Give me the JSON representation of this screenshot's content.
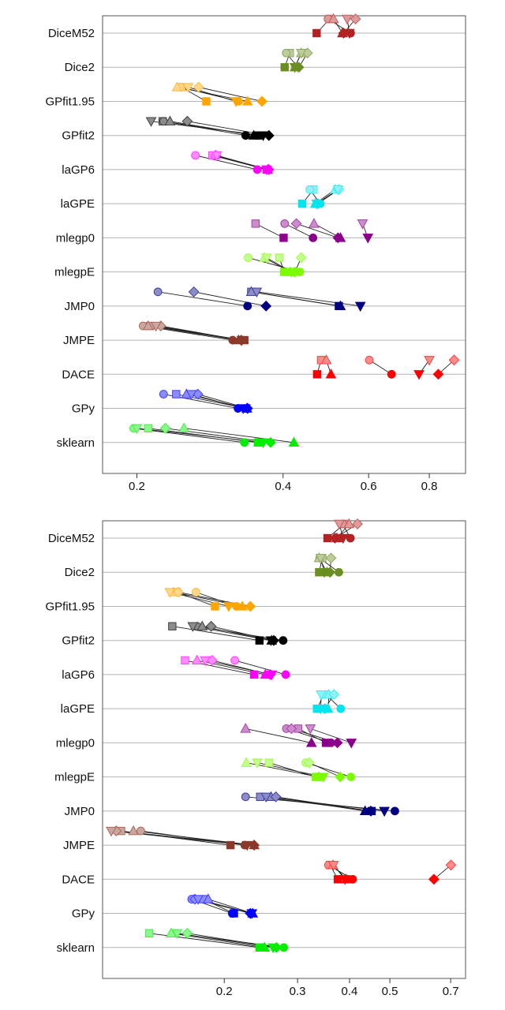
{
  "chart_data": [
    {
      "type": "scatter",
      "x_scale": "log",
      "xlim": [
        0.17,
        0.95
      ],
      "xticks": [
        0.2,
        0.4,
        0.6,
        0.8
      ],
      "xtick_labels": [
        "0.2",
        "0.4",
        "0.6",
        "0.8"
      ],
      "categories": [
        "DiceM52",
        "Dice2",
        "GPfit1.95",
        "GPfit2",
        "laGP6",
        "laGPE",
        "mlegp0",
        "mlegpE",
        "JMP0",
        "JMPE",
        "DACE",
        "GPy",
        "sklearn"
      ],
      "colors": [
        "#b22222",
        "#6b8e23",
        "#ffa500",
        "#000000",
        "#ff00ff",
        "#00e5ee",
        "#8b008b",
        "#7cfc00",
        "#000080",
        "#8b3a2a",
        "#ff0000",
        "#0000ff",
        "#00ee00"
      ],
      "markers": [
        "square",
        "circle",
        "triangle",
        "diamond",
        "down-triangle"
      ],
      "rows": [
        {
          "name": "DiceM52",
          "pairs": [
            [
              0.499,
              0.469
            ],
            [
              0.495,
              0.551
            ],
            [
              0.508,
              0.53
            ],
            [
              0.564,
              0.533
            ],
            [
              0.542,
              0.548
            ]
          ]
        },
        {
          "name": "Dice2",
          "pairs": [
            [
              0.413,
              0.403
            ],
            [
              0.406,
              0.429
            ],
            [
              0.436,
              0.423
            ],
            [
              0.449,
              0.431
            ],
            [
              0.436,
              0.423
            ]
          ]
        },
        {
          "name": "GPfit1.95",
          "pairs": [
            [
              0.247,
              0.278
            ],
            [
              0.246,
              0.324
            ],
            [
              0.242,
              0.338
            ],
            [
              0.268,
              0.362
            ],
            [
              0.255,
              0.32
            ]
          ]
        },
        {
          "name": "GPfit2",
          "pairs": [
            [
              0.226,
              0.355
            ],
            [
              0.227,
              0.335
            ],
            [
              0.234,
              0.348
            ],
            [
              0.254,
              0.374
            ],
            [
              0.214,
              0.364
            ]
          ]
        },
        {
          "name": "laGP6",
          "pairs": [
            [
              0.286,
              0.37
            ],
            [
              0.264,
              0.354
            ],
            [
              0.29,
              0.372
            ],
            [
              0.291,
              0.374
            ],
            [
              0.292,
              0.37
            ]
          ]
        },
        {
          "name": "laGPE",
          "pairs": [
            [
              0.462,
              0.438
            ],
            [
              0.454,
              0.477
            ],
            [
              0.512,
              0.466
            ],
            [
              0.521,
              0.472
            ],
            [
              0.519,
              0.469
            ]
          ]
        },
        {
          "name": "mlegp0",
          "pairs": [
            [
              0.351,
              0.401
            ],
            [
              0.403,
              0.461
            ],
            [
              0.463,
              0.525
            ],
            [
              0.426,
              0.519
            ],
            [
              0.583,
              0.598
            ]
          ]
        },
        {
          "name": "mlegpE",
          "pairs": [
            [
              0.393,
              0.402
            ],
            [
              0.339,
              0.433
            ],
            [
              0.366,
              0.414
            ],
            [
              0.436,
              0.423
            ],
            [
              0.37,
              0.416
            ]
          ]
        },
        {
          "name": "JMP0",
          "pairs": [
            [
              0.344,
              0.521
            ],
            [
              0.221,
              0.338
            ],
            [
              0.344,
              0.525
            ],
            [
              0.262,
              0.369
            ],
            [
              0.353,
              0.577
            ]
          ]
        },
        {
          "name": "JMPE",
          "pairs": [
            [
              0.213,
              0.333
            ],
            [
              0.206,
              0.315
            ],
            [
              0.211,
              0.324
            ],
            [
              0.224,
              0.328
            ],
            [
              0.219,
              0.329
            ]
          ]
        },
        {
          "name": "DACE",
          "pairs": [
            [
              0.479,
              0.47
            ],
            [
              0.602,
              0.669
            ],
            [
              0.491,
              0.502
            ],
            [
              0.9,
              0.835
            ],
            [
              0.8,
              0.762
            ]
          ]
        },
        {
          "name": "GPy",
          "pairs": [
            [
              0.241,
              0.336
            ],
            [
              0.227,
              0.323
            ],
            [
              0.253,
              0.337
            ],
            [
              0.267,
              0.338
            ],
            [
              0.259,
              0.331
            ]
          ]
        },
        {
          "name": "sklearn",
          "pairs": [
            [
              0.211,
              0.355
            ],
            [
              0.197,
              0.333
            ],
            [
              0.25,
              0.421
            ],
            [
              0.229,
              0.377
            ],
            [
              0.2,
              0.364
            ]
          ]
        }
      ]
    },
    {
      "type": "scatter",
      "x_scale": "log",
      "xlim": [
        0.102,
        0.76
      ],
      "xticks": [
        0.2,
        0.3,
        0.4,
        0.5,
        0.7
      ],
      "xtick_labels": [
        "0.2",
        "0.3",
        "0.4",
        "0.5",
        "0.7"
      ],
      "categories": [
        "DiceM52",
        "Dice2",
        "GPfit1.95",
        "GPfit2",
        "laGP6",
        "laGPE",
        "mlegp0",
        "mlegpE",
        "JMP0",
        "JMPE",
        "DACE",
        "GPy",
        "sklearn"
      ],
      "colors": [
        "#b22222",
        "#6b8e23",
        "#ffa500",
        "#000000",
        "#ff00ff",
        "#00e5ee",
        "#8b008b",
        "#7cfc00",
        "#000080",
        "#8b3a2a",
        "#ff0000",
        "#0000ff",
        "#00ee00"
      ],
      "markers": [
        "square",
        "circle",
        "triangle",
        "diamond",
        "down-triangle"
      ],
      "rows": [
        {
          "name": "DiceM52",
          "pairs": [
            [
              0.389,
              0.354
            ],
            [
              0.385,
              0.402
            ],
            [
              0.399,
              0.373
            ],
            [
              0.418,
              0.369
            ],
            [
              0.378,
              0.386
            ]
          ]
        },
        {
          "name": "Dice2",
          "pairs": [
            [
              0.344,
              0.338
            ],
            [
              0.339,
              0.377
            ],
            [
              0.338,
              0.353
            ],
            [
              0.361,
              0.359
            ],
            [
              0.341,
              0.348
            ]
          ]
        },
        {
          "name": "GPfit1.95",
          "pairs": [
            [
              0.154,
              0.19
            ],
            [
              0.171,
              0.214
            ],
            [
              0.151,
              0.221
            ],
            [
              0.155,
              0.231
            ],
            [
              0.148,
              0.205
            ]
          ]
        },
        {
          "name": "GPfit2",
          "pairs": [
            [
              0.15,
              0.243
            ],
            [
              0.172,
              0.277
            ],
            [
              0.177,
              0.26
            ],
            [
              0.186,
              0.263
            ],
            [
              0.168,
              0.259
            ]
          ]
        },
        {
          "name": "laGP6",
          "pairs": [
            [
              0.161,
              0.236
            ],
            [
              0.212,
              0.281
            ],
            [
              0.172,
              0.251
            ],
            [
              0.187,
              0.258
            ],
            [
              0.18,
              0.26
            ]
          ]
        },
        {
          "name": "laGPE",
          "pairs": [
            [
              0.347,
              0.334
            ],
            [
              0.351,
              0.381
            ],
            [
              0.357,
              0.355
            ],
            [
              0.367,
              0.349
            ],
            [
              0.342,
              0.341
            ]
          ]
        },
        {
          "name": "mlegp0",
          "pairs": [
            [
              0.301,
              0.351
            ],
            [
              0.282,
              0.361
            ],
            [
              0.225,
              0.324
            ],
            [
              0.29,
              0.374
            ],
            [
              0.322,
              0.404
            ]
          ]
        },
        {
          "name": "mlegpE",
          "pairs": [
            [
              0.256,
              0.332
            ],
            [
              0.314,
              0.403
            ],
            [
              0.226,
              0.337
            ],
            [
              0.32,
              0.38
            ],
            [
              0.24,
              0.346
            ]
          ]
        },
        {
          "name": "JMP0",
          "pairs": [
            [
              0.244,
              0.452
            ],
            [
              0.225,
              0.514
            ],
            [
              0.259,
              0.436
            ],
            [
              0.266,
              0.45
            ],
            [
              0.252,
              0.485
            ]
          ]
        },
        {
          "name": "JMPE",
          "pairs": [
            [
              0.113,
              0.207
            ],
            [
              0.126,
              0.224
            ],
            [
              0.121,
              0.236
            ],
            [
              0.11,
              0.236
            ],
            [
              0.107,
              0.227
            ]
          ]
        },
        {
          "name": "DACE",
          "pairs": [
            [
              0.359,
              0.375
            ],
            [
              0.356,
              0.407
            ],
            [
              0.365,
              0.393
            ],
            [
              0.701,
              0.638
            ],
            [
              0.366,
              0.39
            ]
          ]
        },
        {
          "name": "GPy",
          "pairs": [
            [
              0.178,
              0.211
            ],
            [
              0.167,
              0.209
            ],
            [
              0.183,
              0.234
            ],
            [
              0.17,
              0.231
            ],
            [
              0.173,
              0.233
            ]
          ]
        },
        {
          "name": "sklearn",
          "pairs": [
            [
              0.132,
              0.243
            ],
            [
              0.152,
              0.278
            ],
            [
              0.149,
              0.25
            ],
            [
              0.163,
              0.267
            ],
            [
              0.154,
              0.262
            ]
          ]
        }
      ]
    }
  ]
}
